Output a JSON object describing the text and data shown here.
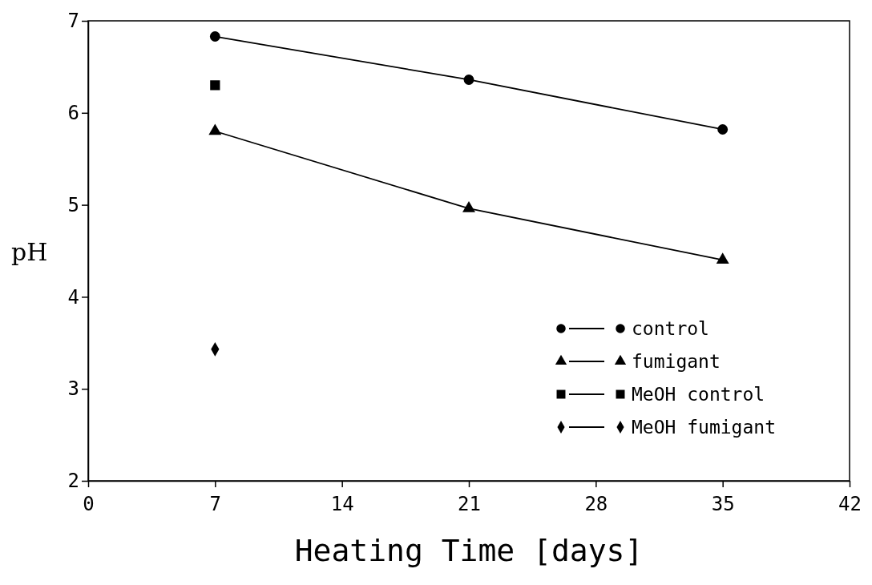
{
  "chart_data": {
    "type": "line",
    "xlabel": "Heating Time [days]",
    "ylabel": "pH",
    "xlim": [
      0,
      42
    ],
    "xticks": [
      0,
      7,
      14,
      21,
      28,
      35,
      42
    ],
    "ylim": [
      2,
      7
    ],
    "yticks": [
      2,
      3,
      4,
      5,
      6,
      7
    ],
    "grid": false,
    "legend": "bottom right",
    "line_style": "solid",
    "series": [
      {
        "name": "control",
        "color": "#000000",
        "marker": "circle",
        "x": [
          7,
          21,
          35
        ],
        "values": [
          6.83,
          6.36,
          5.82
        ]
      },
      {
        "name": "fumigant",
        "color": "#000000",
        "marker": "triangle",
        "x": [
          7,
          21,
          35
        ],
        "values": [
          5.8,
          4.96,
          4.4
        ]
      },
      {
        "name": "MeOH control",
        "color": "#000000",
        "marker": "square",
        "x": [
          7
        ],
        "values": [
          6.3
        ]
      },
      {
        "name": "MeOH fumigant",
        "color": "#000000",
        "marker": "diamond",
        "x": [
          7
        ],
        "values": [
          3.43
        ]
      }
    ]
  }
}
